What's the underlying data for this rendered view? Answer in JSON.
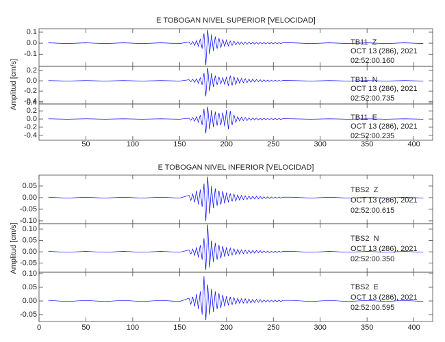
{
  "chart_data": [
    {
      "type": "line",
      "title": "E TOBOGAN NIVEL SUPERIOR [VELOCIDAD]",
      "y_label": "Amplitud [cm/s]",
      "xlim": [
        0,
        420
      ],
      "xticks": [
        50,
        100,
        150,
        200,
        250,
        300,
        350,
        400
      ],
      "x": [
        10,
        30,
        50,
        70,
        90,
        110,
        130,
        150,
        160,
        162,
        164,
        166,
        168,
        170,
        172,
        174,
        176,
        178,
        180,
        182,
        184,
        186,
        188,
        190,
        192,
        194,
        196,
        198,
        200,
        202,
        204,
        206,
        208,
        210,
        212,
        214,
        216,
        218,
        220,
        222,
        224,
        226,
        228,
        230,
        232,
        234,
        236,
        238,
        240,
        242,
        244,
        246,
        248,
        250,
        252,
        254,
        256,
        258,
        260,
        270,
        290,
        310,
        330,
        350,
        370,
        390,
        410
      ],
      "panels": [
        {
          "ylim": [
            -0.21,
            0.131
          ],
          "yticks": [
            0.1,
            {
              "value": 0,
              "label": "0.0"
            },
            -0.1
          ],
          "series": [
            {
              "name": "TB11  Z",
              "color": "#0000ff",
              "values": [
                0.003,
                -0.003,
                0.003,
                -0.003,
                0.003,
                -0.003,
                0.003,
                -0.003,
                0.01,
                -0.012,
                0.015,
                -0.02,
                0.025,
                -0.03,
                0.04,
                -0.05,
                0.09,
                -0.2,
                0.12,
                -0.1,
                0.08,
                -0.07,
                0.06,
                -0.05,
                0.045,
                -0.04,
                0.035,
                -0.03,
                0.03,
                -0.025,
                0.02,
                -0.02,
                0.018,
                -0.015,
                0.014,
                -0.013,
                0.012,
                -0.011,
                0.01,
                -0.009,
                0.009,
                -0.008,
                0.008,
                -0.008,
                0.007,
                -0.007,
                0.007,
                -0.006,
                0.006,
                -0.006,
                0.006,
                -0.005,
                0.005,
                -0.005,
                0.005,
                -0.004,
                0.004,
                -0.004,
                0.004,
                0.003,
                -0.003,
                0.003,
                -0.003,
                0.003,
                -0.003,
                0.003,
                -0.003
              ]
            }
          ],
          "annotations": [
            "OCT 13 (286), 2021",
            "02:52:00.160"
          ]
        },
        {
          "ylim": [
            -0.45,
            0.28
          ],
          "yticks": [
            0.2,
            {
              "value": 0,
              "label": "0.0"
            },
            -0.2,
            -0.4
          ],
          "series": [
            {
              "name": "TB11  N",
              "color": "#0000ff",
              "values": [
                0.005,
                -0.005,
                0.005,
                -0.005,
                0.005,
                -0.005,
                0.005,
                -0.005,
                0.02,
                -0.02,
                0.03,
                -0.03,
                0.04,
                -0.05,
                0.06,
                -0.08,
                0.15,
                -0.3,
                0.25,
                -0.2,
                0.15,
                -0.12,
                0.1,
                -0.08,
                0.07,
                -0.06,
                0.06,
                -0.07,
                0.08,
                -0.1,
                0.1,
                -0.09,
                0.08,
                -0.07,
                0.06,
                -0.05,
                0.05,
                -0.04,
                0.04,
                -0.035,
                0.03,
                -0.03,
                0.03,
                -0.025,
                0.025,
                -0.02,
                0.02,
                -0.02,
                0.018,
                -0.016,
                0.015,
                -0.014,
                0.013,
                -0.012,
                0.011,
                -0.01,
                0.01,
                -0.009,
                0.008,
                0.005,
                -0.005,
                0.005,
                -0.005,
                0.005,
                -0.005,
                0.005,
                -0.005
              ]
            }
          ],
          "annotations": [
            "OCT 13 (286), 2021",
            "02:52:00.735"
          ]
        },
        {
          "ylim": [
            -0.52,
            0.37
          ],
          "yticks": [
            0.4,
            0.2,
            {
              "value": 0,
              "label": "0.0"
            },
            -0.2,
            -0.4
          ],
          "series": [
            {
              "name": "TB11  E",
              "color": "#0000ff",
              "values": [
                0.005,
                -0.005,
                0.005,
                -0.005,
                0.005,
                -0.005,
                0.005,
                -0.005,
                0.02,
                -0.03,
                0.04,
                -0.05,
                0.06,
                -0.08,
                0.1,
                -0.15,
                0.25,
                -0.35,
                0.3,
                -0.25,
                0.22,
                -0.2,
                0.18,
                -0.16,
                0.15,
                -0.15,
                0.16,
                -0.18,
                0.22,
                -0.25,
                0.2,
                -0.15,
                0.1,
                -0.08,
                0.06,
                -0.05,
                0.05,
                -0.04,
                0.04,
                -0.035,
                0.03,
                -0.03,
                0.03,
                -0.025,
                0.025,
                -0.02,
                0.02,
                -0.02,
                0.018,
                -0.016,
                0.015,
                -0.014,
                0.013,
                -0.012,
                0.011,
                -0.01,
                0.01,
                -0.009,
                0.008,
                0.005,
                -0.005,
                0.005,
                -0.005,
                0.005,
                -0.005,
                0.005,
                -0.005
              ]
            }
          ],
          "annotations": [
            "OCT 13 (286), 2021",
            "02:52:00.235"
          ]
        }
      ]
    },
    {
      "type": "line",
      "title": "E TOBOGAN NIVEL INFERIOR [VELOCIDAD]",
      "y_label": "Amplitud [cm/s]",
      "xlim": [
        0,
        420
      ],
      "xticks": [
        0,
        50,
        100,
        150,
        200,
        250,
        300,
        350,
        400
      ],
      "x": [
        10,
        30,
        50,
        70,
        90,
        110,
        130,
        150,
        160,
        162,
        164,
        166,
        168,
        170,
        172,
        174,
        176,
        178,
        180,
        182,
        184,
        186,
        188,
        190,
        192,
        194,
        196,
        198,
        200,
        202,
        204,
        206,
        208,
        210,
        212,
        214,
        216,
        218,
        220,
        222,
        224,
        226,
        228,
        230,
        232,
        234,
        236,
        238,
        240,
        242,
        244,
        246,
        248,
        250,
        252,
        254,
        256,
        258,
        260,
        270,
        290,
        310,
        330,
        350,
        370,
        390,
        410
      ],
      "panels": [
        {
          "ylim": [
            -0.112,
            0.097
          ],
          "yticks": [
            0.05,
            {
              "value": 0,
              "label": "0.00"
            },
            -0.05,
            {
              "value": -0.1,
              "label": "-0.10"
            }
          ],
          "series": [
            {
              "name": "TBS2  Z",
              "color": "#0000ff",
              "values": [
                0.002,
                -0.002,
                0.002,
                -0.002,
                0.002,
                -0.002,
                0.002,
                -0.002,
                0.01,
                -0.012,
                0.015,
                -0.02,
                0.03,
                -0.03,
                0.035,
                -0.04,
                0.06,
                -0.1,
                0.09,
                -0.07,
                0.05,
                -0.045,
                0.04,
                -0.035,
                0.03,
                -0.03,
                0.028,
                -0.025,
                0.022,
                -0.02,
                0.018,
                -0.016,
                0.015,
                -0.014,
                0.012,
                -0.011,
                0.01,
                -0.009,
                0.008,
                -0.008,
                0.007,
                -0.007,
                0.006,
                -0.006,
                0.006,
                -0.005,
                0.005,
                -0.005,
                0.004,
                -0.004,
                0.004,
                -0.004,
                0.003,
                -0.003,
                0.003,
                -0.003,
                0.003,
                -0.002,
                0.002,
                0.002,
                -0.002,
                0.002,
                -0.002,
                0.002,
                -0.002,
                0.002,
                -0.002
              ]
            }
          ],
          "annotations": [
            "OCT 13 (286), 2021",
            "02:52:00.615"
          ]
        },
        {
          "ylim": [
            -0.09,
            0.124
          ],
          "yticks": [
            {
              "value": 0.1,
              "label": "0.10"
            },
            0.05,
            {
              "value": 0,
              "label": "0.00"
            },
            -0.05
          ],
          "series": [
            {
              "name": "TBS2  N",
              "color": "#0000ff",
              "values": [
                0.002,
                -0.002,
                0.002,
                -0.002,
                0.002,
                -0.002,
                0.002,
                -0.002,
                0.008,
                -0.01,
                0.012,
                -0.015,
                0.02,
                -0.025,
                0.03,
                -0.035,
                0.06,
                -0.08,
                0.12,
                -0.07,
                0.05,
                -0.045,
                0.04,
                -0.035,
                0.03,
                -0.028,
                0.025,
                -0.022,
                0.02,
                -0.018,
                0.016,
                -0.014,
                0.013,
                -0.012,
                0.011,
                -0.01,
                0.009,
                -0.008,
                0.008,
                -0.008,
                0.007,
                -0.007,
                0.006,
                -0.006,
                0.006,
                -0.005,
                0.005,
                -0.005,
                0.004,
                -0.004,
                0.004,
                -0.004,
                0.003,
                -0.003,
                0.003,
                -0.003,
                0.003,
                -0.002,
                0.002,
                0.002,
                -0.002,
                0.002,
                -0.002,
                0.002,
                -0.002,
                0.002,
                -0.002
              ]
            }
          ],
          "annotations": [
            "OCT 13 (286), 2021",
            "02:52:00.350"
          ]
        },
        {
          "ylim": [
            -0.075,
            0.105
          ],
          "yticks": [
            {
              "value": 0.1,
              "label": "0.10"
            },
            0.05,
            {
              "value": 0,
              "label": "0.00"
            },
            -0.05
          ],
          "series": [
            {
              "name": "TBS2  E",
              "color": "#0000ff",
              "values": [
                0.002,
                -0.002,
                0.002,
                -0.002,
                0.002,
                -0.002,
                0.002,
                -0.002,
                0.01,
                -0.012,
                0.015,
                -0.02,
                0.025,
                -0.03,
                0.035,
                -0.05,
                0.09,
                -0.07,
                0.06,
                -0.05,
                0.045,
                -0.04,
                0.035,
                -0.03,
                0.028,
                -0.025,
                0.022,
                -0.02,
                0.018,
                -0.016,
                0.015,
                -0.014,
                0.012,
                -0.011,
                0.01,
                -0.009,
                0.009,
                -0.008,
                0.008,
                -0.008,
                0.007,
                -0.007,
                0.006,
                -0.006,
                0.006,
                -0.005,
                0.005,
                -0.005,
                0.004,
                -0.004,
                0.004,
                -0.004,
                0.003,
                -0.003,
                0.003,
                -0.003,
                0.003,
                -0.002,
                0.002,
                0.002,
                -0.002,
                0.002,
                -0.002,
                0.002,
                -0.002,
                0.002,
                -0.002
              ]
            }
          ],
          "annotations": [
            "OCT 13 (286), 2021",
            "02:52:00.595"
          ]
        }
      ]
    }
  ]
}
